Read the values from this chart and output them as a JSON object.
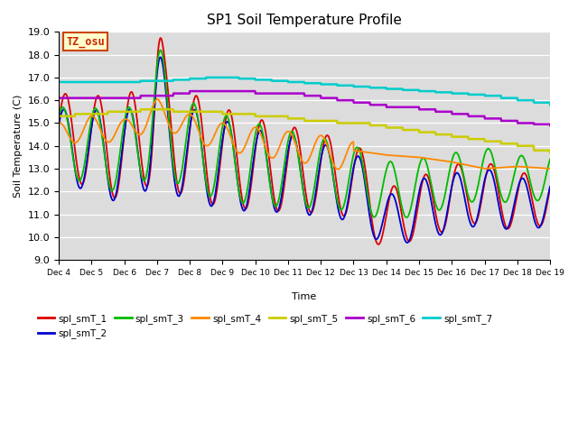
{
  "title": "SP1 Soil Temperature Profile",
  "ylabel": "Soil Temperature (C)",
  "xlabel": "Time",
  "ylim": [
    9.0,
    19.0
  ],
  "yticks": [
    9.0,
    10.0,
    11.0,
    12.0,
    13.0,
    14.0,
    15.0,
    16.0,
    17.0,
    18.0,
    19.0
  ],
  "xtick_labels": [
    "Dec 4",
    "Dec 5",
    "Dec 6",
    "Dec 7",
    "Dec 8",
    "Dec 9",
    "Dec 10",
    "Dec 11",
    "Dec 12",
    "Dec 13",
    "Dec 14",
    "Dec 15",
    "Dec 16",
    "Dec 17",
    "Dec 18",
    "Dec 19"
  ],
  "bg_color": "#dcdcdc",
  "series_colors": {
    "spl_smT_1": "#dd0000",
    "spl_smT_2": "#0000cc",
    "spl_smT_3": "#00bb00",
    "spl_smT_4": "#ff8800",
    "spl_smT_5": "#cccc00",
    "spl_smT_6": "#aa00cc",
    "spl_smT_7": "#00cccc"
  },
  "tz_osu_label": "TZ_osu",
  "tz_osu_bg": "#ffffcc",
  "tz_osu_border": "#cc4400",
  "tz_osu_text_color": "#cc2200",
  "annotation_box_bg": "#ffffcc",
  "annotation_box_edge": "#cc4400"
}
